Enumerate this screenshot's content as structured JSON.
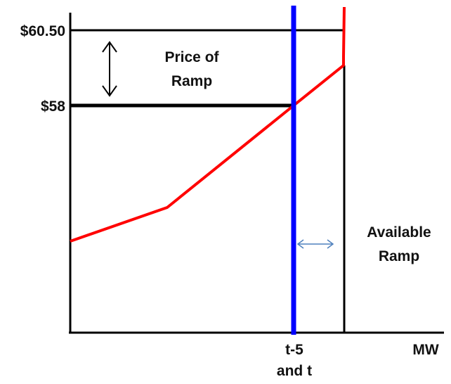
{
  "y_labels": {
    "high": "$60.50",
    "low": "$58"
  },
  "annotations": {
    "price_of_ramp": [
      "Price of",
      "Ramp"
    ],
    "available_ramp": [
      "Available",
      "Ramp"
    ]
  },
  "x_labels": {
    "marker": [
      "t-5",
      "and t"
    ],
    "axis": "MW"
  },
  "colors": {
    "axes": "#000000",
    "supply_curve": "#ff0000",
    "current_output_line": "#0000ff",
    "range_arrow": "#4f81bd"
  }
}
